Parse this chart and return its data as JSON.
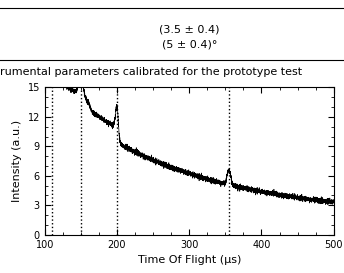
{
  "xlabel": "Time Of Flight (μs)",
  "ylabel": "Intensity (a.u.)",
  "xlim": [
    100,
    500
  ],
  "ylim": [
    0,
    15
  ],
  "xticks": [
    100,
    200,
    300,
    400,
    500
  ],
  "yticks": [
    0,
    3,
    6,
    9,
    12,
    15
  ],
  "vlines": [
    110,
    150,
    200,
    355
  ],
  "line_color": "#000000",
  "vline_color": "#000000",
  "background_color": "#ffffff",
  "figsize": [
    3.44,
    2.73
  ],
  "dpi": 100,
  "top_text1": "(3.5 ± 0.4)",
  "top_text2": "(5 ± 0.4)°",
  "caption": "rumental parameters calibrated for the prototype test"
}
